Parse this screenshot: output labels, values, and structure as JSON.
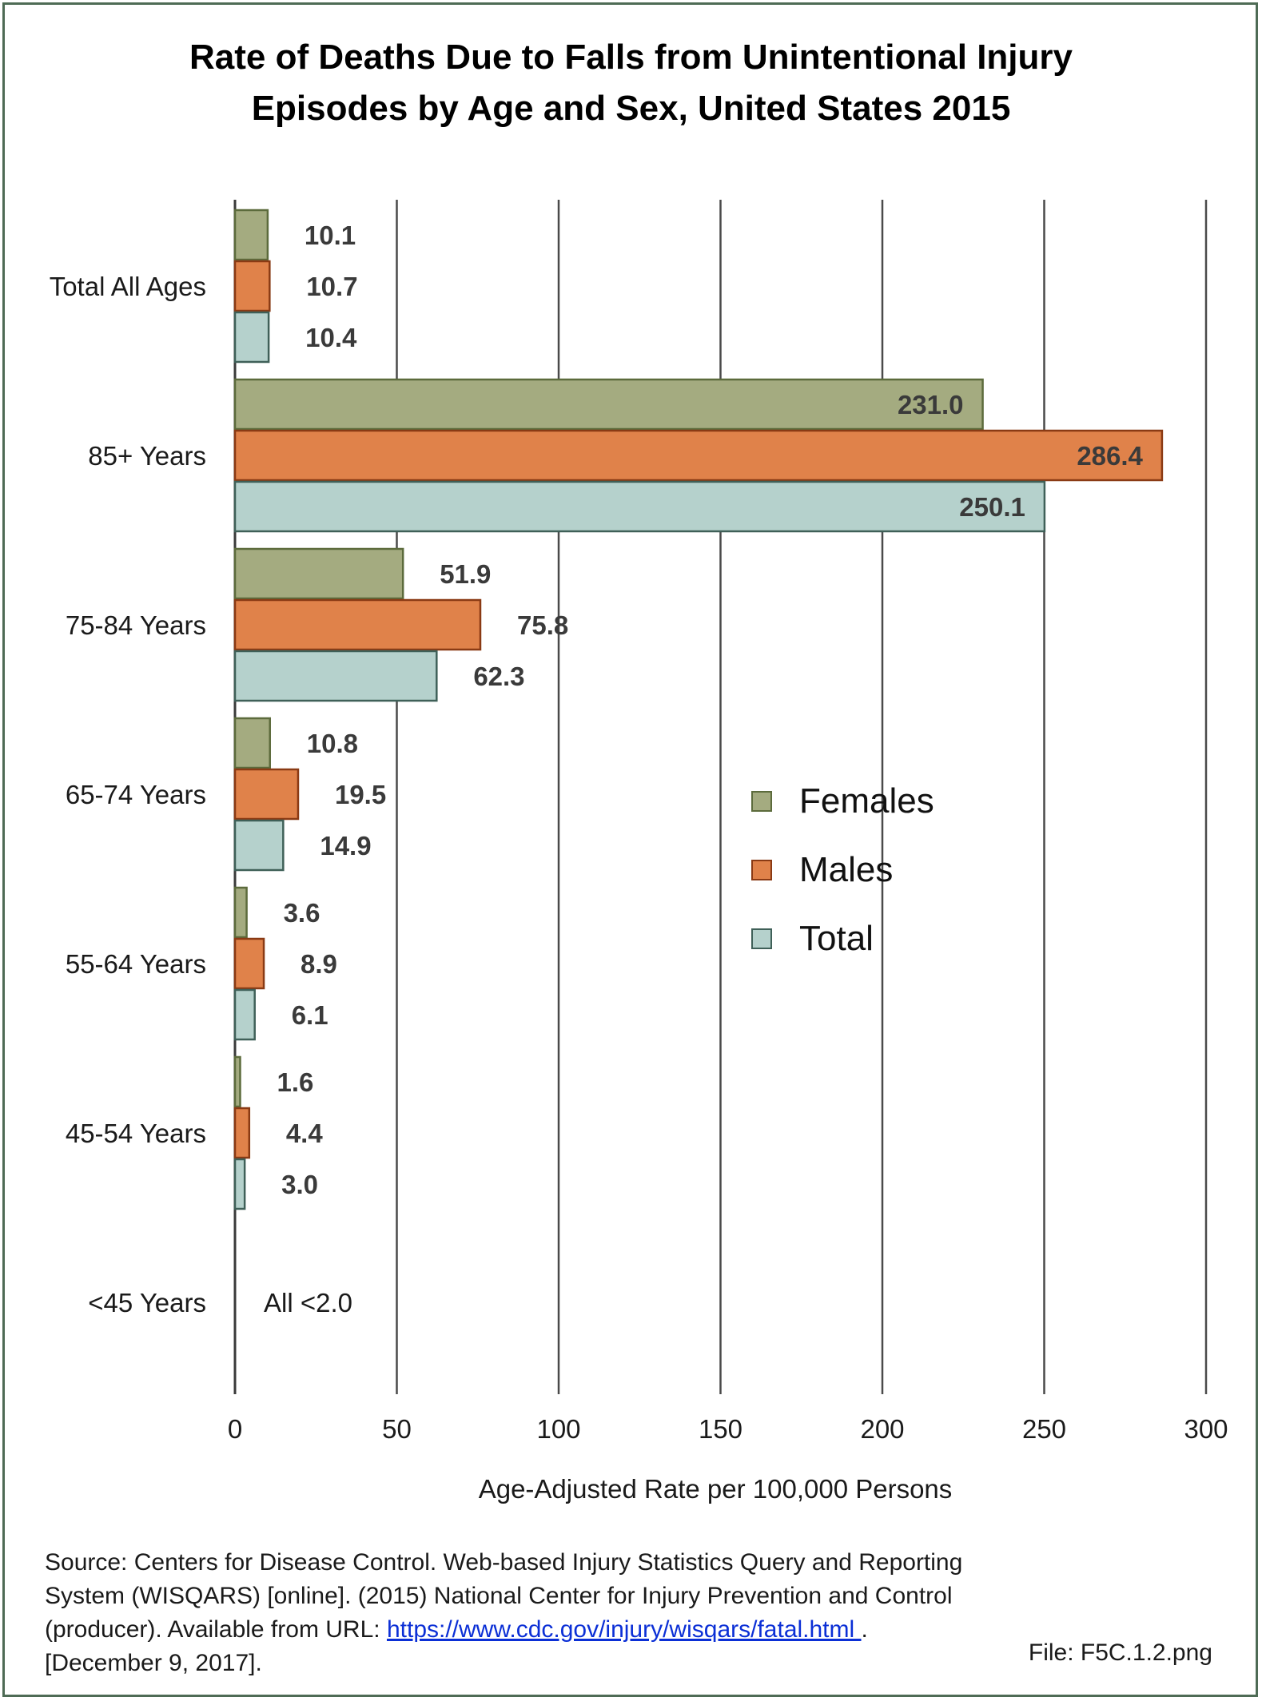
{
  "chart_data": {
    "type": "bar",
    "orientation": "horizontal",
    "title_lines": [
      "Rate of Deaths Due to Falls from Unintentional Injury",
      "Episodes by Age and Sex, United States 2015"
    ],
    "categories": [
      "Total All Ages",
      "85+ Years",
      "75-84 Years",
      "65-74 Years",
      "55-64 Years",
      "45-54 Years",
      "<45 Years"
    ],
    "series": [
      {
        "name": "Females",
        "color": "#a4ab80",
        "values": [
          10.1,
          231.0,
          51.9,
          10.8,
          3.6,
          1.6,
          null
        ],
        "labels": [
          "10.1",
          "231.0",
          "51.9",
          "10.8",
          "3.6",
          "1.6",
          ""
        ]
      },
      {
        "name": "Males",
        "color": "#e0824a",
        "values": [
          10.7,
          286.4,
          75.8,
          19.5,
          8.9,
          4.4,
          null
        ],
        "labels": [
          "10.7",
          "286.4",
          "75.8",
          "19.5",
          "8.9",
          "4.4",
          ""
        ]
      },
      {
        "name": "Total",
        "color": "#b5d1cc",
        "values": [
          10.4,
          250.1,
          62.3,
          14.9,
          6.1,
          3.0,
          null
        ],
        "labels": [
          "10.4",
          "250.1",
          "62.3",
          "14.9",
          "6.1",
          "3.0",
          ""
        ]
      }
    ],
    "category_note": {
      "category": "<45 Years",
      "text": "All <2.0"
    },
    "xlabel": "Age-Adjusted Rate per 100,000 Persons",
    "xlim": [
      0,
      300
    ],
    "xticks": [
      0,
      50,
      100,
      150,
      200,
      250,
      300
    ],
    "grid": "vertical",
    "legend_position": "right-middle",
    "bar_border_colors": {
      "Females": "#5c6b3c",
      "Males": "#8a3a14",
      "Total": "#3f6058"
    }
  },
  "source": {
    "line1": "Source: Centers for Disease Control. Web-based Injury Statistics Query and Reporting",
    "line2": "System (WISQARS) [online]. (2015) National Center for Injury Prevention and Control",
    "line3_prefix": "(producer).  Available from URL: ",
    "url": "https://www.cdc.gov/injury/wisqars/fatal.html ",
    "line3_suffix": ".",
    "line4": "[December 9, 2017]."
  },
  "file_label": "File: F5C.1.2.png"
}
